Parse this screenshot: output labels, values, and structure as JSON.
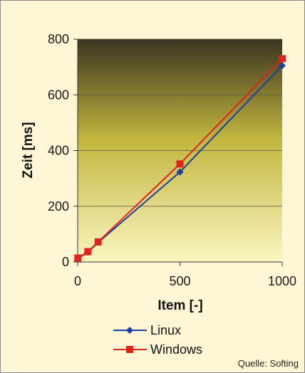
{
  "chart_data": {
    "type": "line",
    "xlabel": "Item [-]",
    "ylabel": "Zeit [ms]",
    "xlim": [
      0,
      1000
    ],
    "ylim": [
      0,
      800
    ],
    "x_ticks": [
      "0",
      "500",
      "1000"
    ],
    "y_ticks": [
      "0",
      "200",
      "400",
      "600",
      "800"
    ],
    "grid": "horizontal",
    "legend_position": "bottom",
    "series": [
      {
        "name": "Linux",
        "color": "#1f3f9e",
        "marker": "diamond",
        "x": [
          1,
          50,
          100,
          500,
          1000
        ],
        "y": [
          12,
          35,
          70,
          323,
          705
        ]
      },
      {
        "name": "Windows",
        "color": "#e3231b",
        "marker": "square",
        "x": [
          1,
          50,
          100,
          500,
          1000
        ],
        "y": [
          14,
          37,
          72,
          352,
          730
        ]
      }
    ],
    "source": "Quelle: Softing"
  },
  "colors": {
    "plot_top": "#3a3420",
    "plot_mid": "#c2b640",
    "plot_bottom": "#fbf6c0",
    "page_background": "#fff6d6"
  }
}
